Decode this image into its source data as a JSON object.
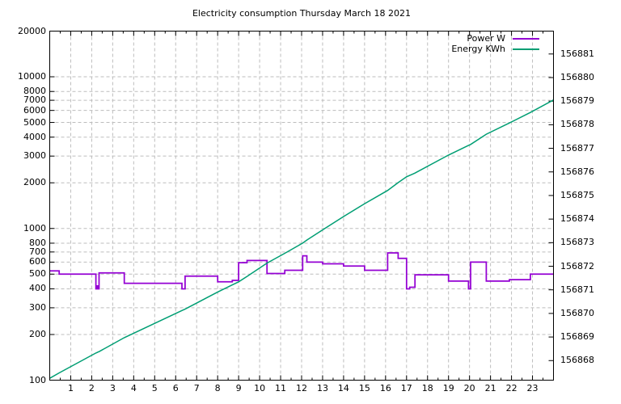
{
  "chart_data": {
    "type": "line",
    "title": "Electricity consumption Thursday March 18 2021",
    "grid": true,
    "legend": {
      "position": "top-right-inside",
      "entries": [
        {
          "label": "Power W",
          "color": "#9400d3"
        },
        {
          "label": "Energy KWh",
          "color": "#009e73"
        }
      ]
    },
    "x_axis": {
      "min": 0,
      "max": 24,
      "major_ticks": [
        1,
        2,
        3,
        4,
        5,
        6,
        7,
        8,
        9,
        10,
        11,
        12,
        13,
        14,
        15,
        16,
        17,
        18,
        19,
        20,
        21,
        22,
        23
      ],
      "minor_tick_interval": 0.5,
      "unit": "hour of day"
    },
    "y_axis_left": {
      "scale": "log",
      "min": 100,
      "max": 20000,
      "ticks": [
        100,
        200,
        300,
        400,
        500,
        600,
        700,
        800,
        1000,
        2000,
        3000,
        4000,
        5000,
        6000,
        7000,
        8000,
        10000,
        20000
      ],
      "series": "Power W"
    },
    "y_axis_right": {
      "scale": "linear",
      "min": 156867.17,
      "max": 156881.97,
      "ticks": [
        156868,
        156869,
        156870,
        156871,
        156872,
        156873,
        156874,
        156875,
        156876,
        156877,
        156878,
        156879,
        156880,
        156881
      ],
      "series": "Energy KWh"
    },
    "series": [
      {
        "name": "Power W",
        "color": "#9400d3",
        "axis": "left",
        "style": "steps",
        "points_hour_watts": [
          [
            0.0,
            525
          ],
          [
            0.45,
            500
          ],
          [
            2.2,
            400
          ],
          [
            2.26,
            418
          ],
          [
            2.3,
            400
          ],
          [
            2.35,
            510
          ],
          [
            3.55,
            435
          ],
          [
            6.3,
            400
          ],
          [
            6.45,
            485
          ],
          [
            8.0,
            445
          ],
          [
            8.7,
            455
          ],
          [
            9.0,
            595
          ],
          [
            9.4,
            615
          ],
          [
            10.35,
            505
          ],
          [
            11.2,
            530
          ],
          [
            12.05,
            660
          ],
          [
            12.25,
            600
          ],
          [
            13.0,
            585
          ],
          [
            14.0,
            565
          ],
          [
            15.0,
            530
          ],
          [
            16.1,
            690
          ],
          [
            16.6,
            635
          ],
          [
            17.0,
            400
          ],
          [
            17.15,
            410
          ],
          [
            17.4,
            495
          ],
          [
            19.0,
            450
          ],
          [
            19.95,
            400
          ],
          [
            20.05,
            600
          ],
          [
            20.8,
            450
          ],
          [
            21.9,
            460
          ],
          [
            22.9,
            500
          ],
          [
            24.0,
            500
          ]
        ]
      },
      {
        "name": "Energy KWh",
        "color": "#009e73",
        "axis": "right",
        "style": "cumulative-of-power",
        "start_kwh": 156867.25,
        "end_kwh": 156879.05
      }
    ]
  }
}
